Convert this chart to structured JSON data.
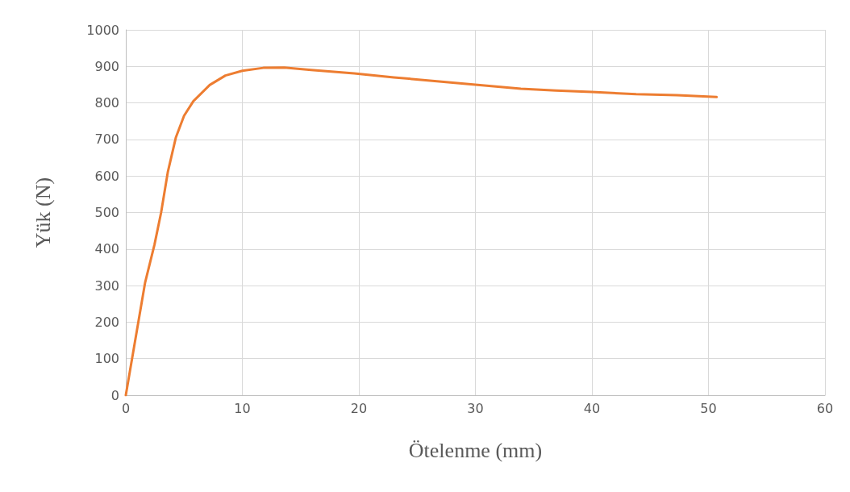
{
  "chart_data": {
    "type": "line",
    "xlabel": "Ötelenme (mm)",
    "ylabel": "Yük (N)",
    "series": [
      {
        "color": "#ed7d31",
        "x": [
          0,
          1.66,
          2.46,
          3.03,
          3.6,
          4.3,
          5.0,
          5.8,
          7.2,
          8.55,
          10,
          11.8,
          13.6,
          15.9,
          19.6,
          23.0,
          26.5,
          30,
          33.9,
          36.9,
          40,
          43.8,
          47.3,
          50.7
        ],
        "values": [
          0,
          309,
          412,
          500,
          610,
          706,
          765,
          805,
          849,
          875,
          888,
          896,
          897,
          890,
          881,
          870,
          860,
          850,
          839,
          834,
          830,
          824,
          821,
          816
        ]
      }
    ],
    "xlim": [
      0,
      60
    ],
    "xticks": [
      0,
      10,
      20,
      30,
      40,
      50,
      60
    ],
    "ylim": [
      0,
      1000
    ],
    "yticks": [
      0,
      100,
      200,
      300,
      400,
      500,
      600,
      700,
      800,
      900,
      1000
    ],
    "grid": true,
    "marker": "none",
    "line_style": "solid"
  }
}
